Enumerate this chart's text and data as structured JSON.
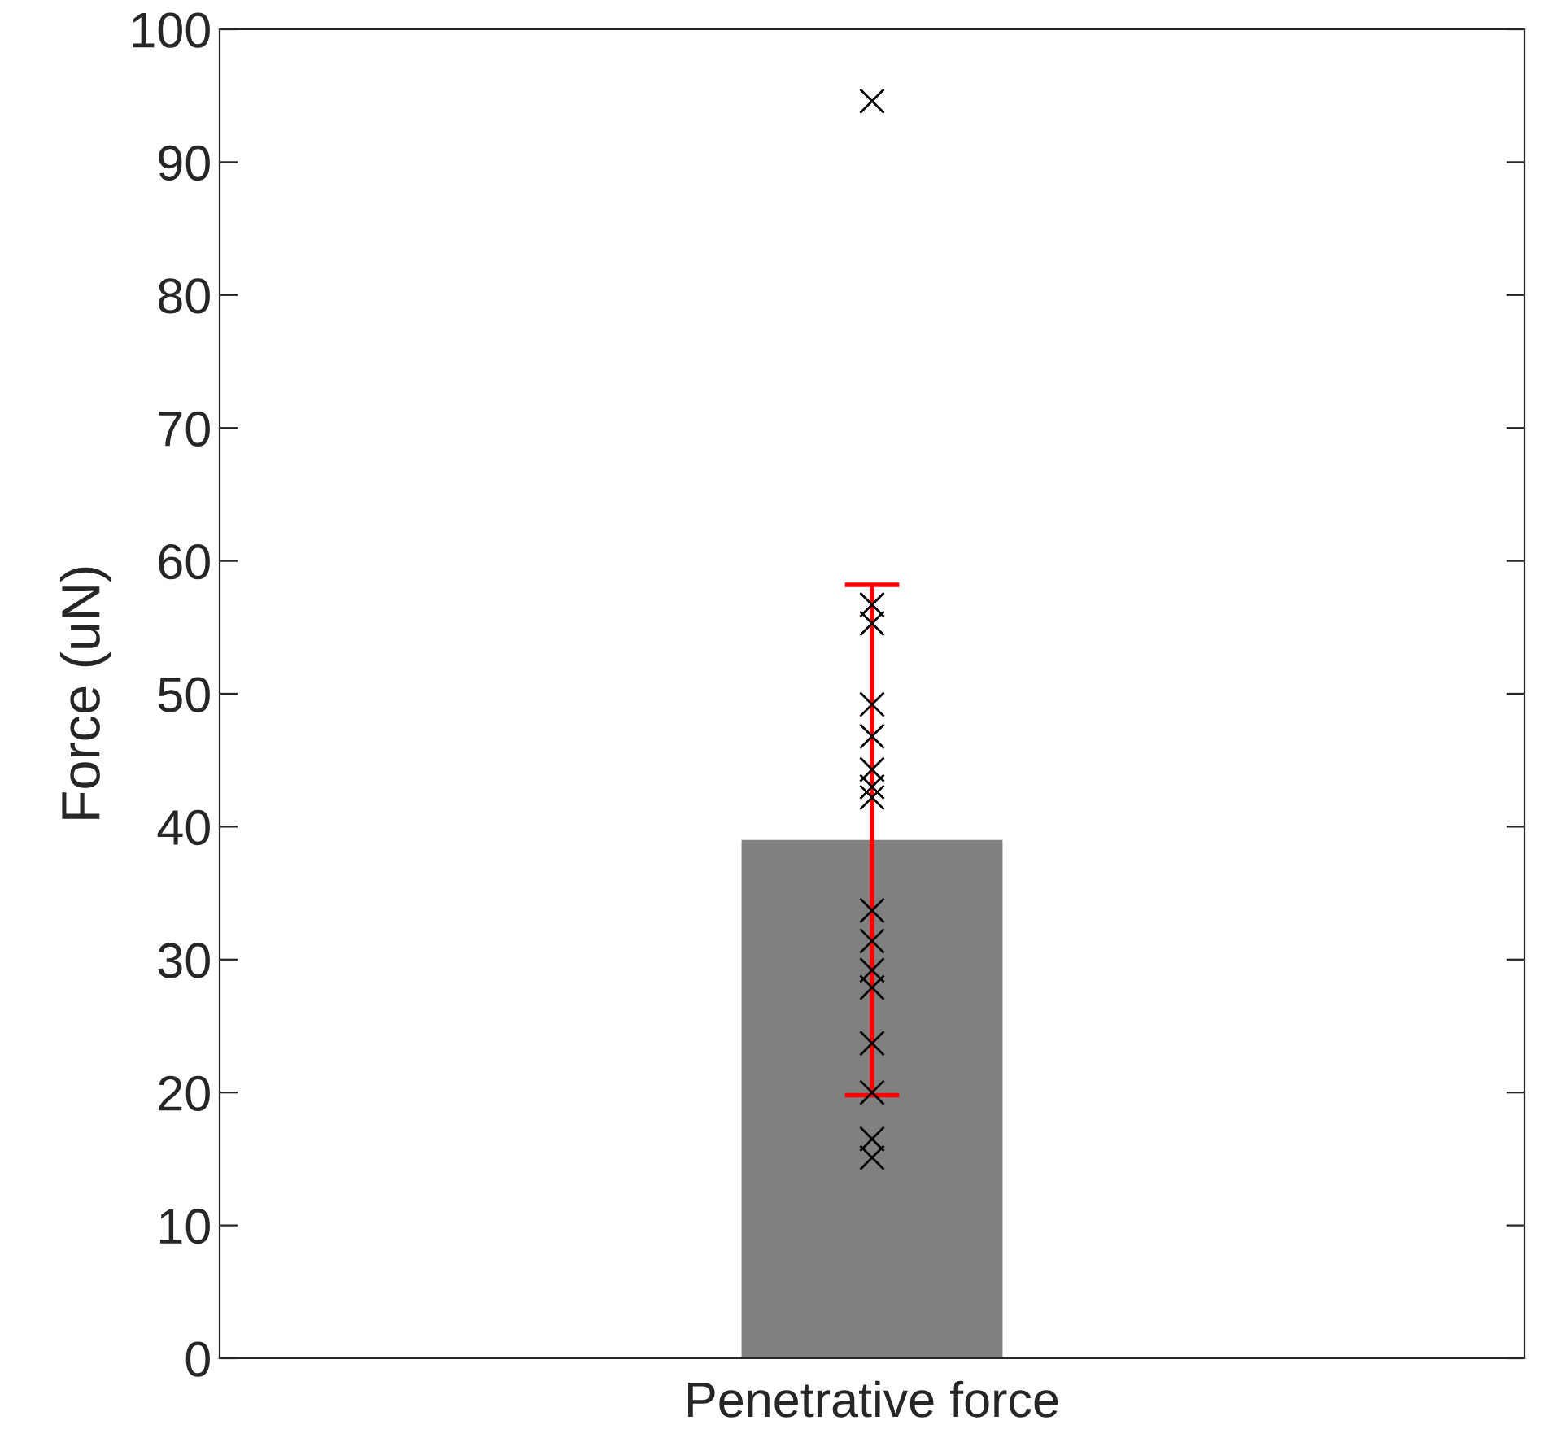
{
  "chart_data": {
    "type": "bar",
    "ylabel": "Force (uN)",
    "categories": [
      "Penetrative force"
    ],
    "ylim": [
      0,
      100
    ],
    "yticks": [
      0,
      10,
      20,
      30,
      40,
      50,
      60,
      70,
      80,
      90,
      100
    ],
    "grid": false,
    "legend": false,
    "series": [
      {
        "color": "#808080",
        "values": [
          39.0
        ],
        "errors": [
          [
            19.8,
            58.2
          ]
        ]
      },
      {
        "type": "scatter",
        "color": "#000000",
        "marker": "cross",
        "x": [
          "Penetrative force",
          "Penetrative force",
          "Penetrative force",
          "Penetrative force",
          "Penetrative force",
          "Penetrative force",
          "Penetrative force",
          "Penetrative force",
          "Penetrative force",
          "Penetrative force",
          "Penetrative force",
          "Penetrative force",
          "Penetrative force",
          "Penetrative force",
          "Penetrative force",
          "Penetrative force"
        ],
        "values": [
          94.6,
          56.7,
          55.3,
          49.2,
          46.8,
          44.3,
          43.0,
          42.2,
          33.7,
          31.4,
          29.2,
          27.9,
          23.7,
          20.0,
          16.5,
          15.1
        ]
      }
    ]
  }
}
